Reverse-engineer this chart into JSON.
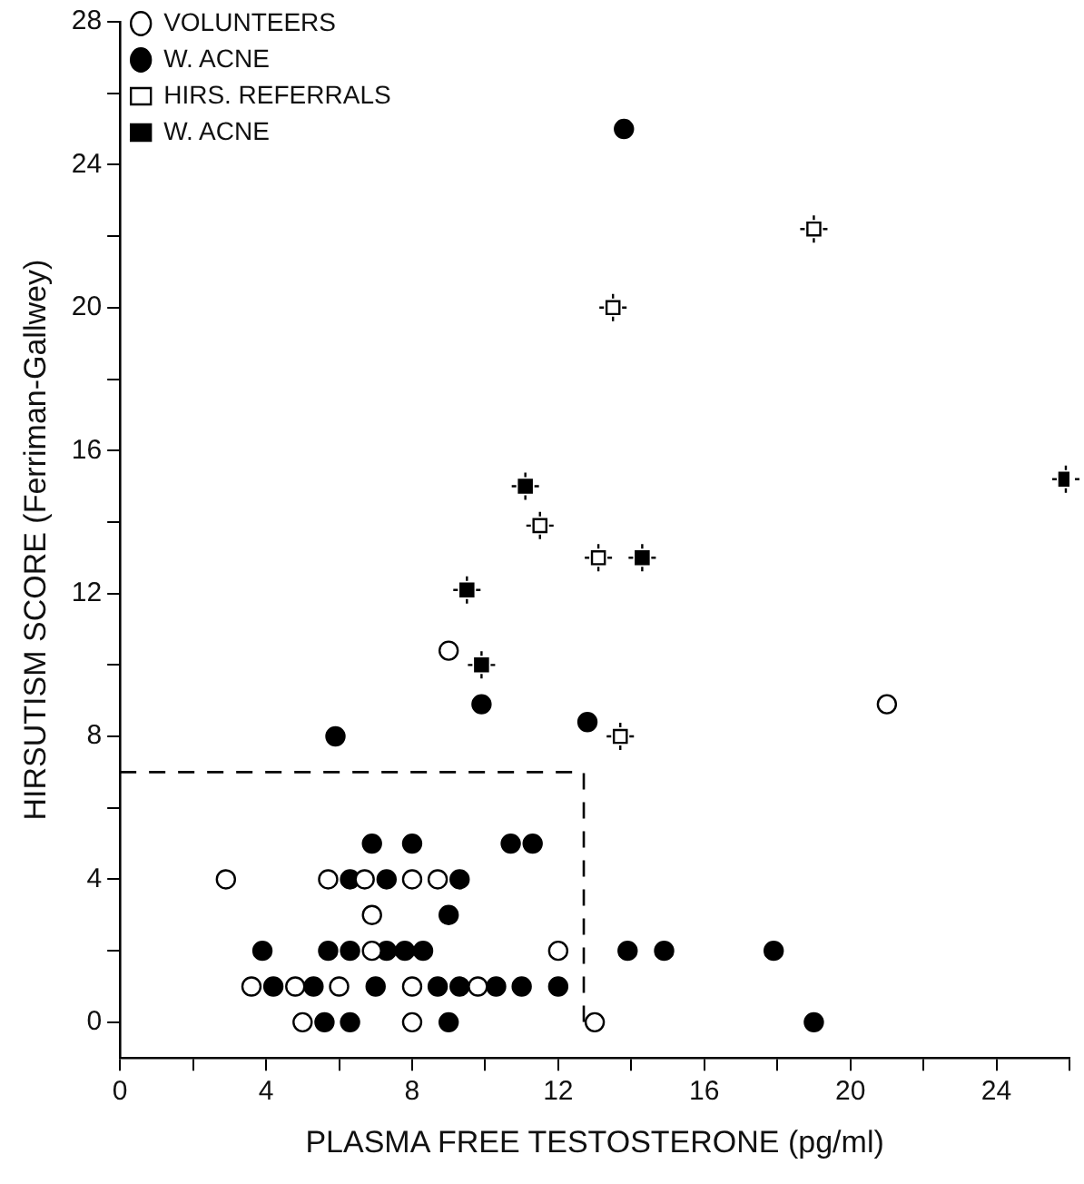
{
  "chart_data": {
    "type": "scatter",
    "xlabel": "PLASMA FREE TESTOSTERONE (pg/ml)",
    "ylabel": "HIRSUTISM SCORE (Ferriman-Gallwey)",
    "xlim": [
      0,
      26
    ],
    "ylim": [
      -1,
      28
    ],
    "xticks": [
      0,
      {
        "value": 2,
        "label": null
      },
      4,
      {
        "value": 6,
        "label": null
      },
      8,
      {
        "value": 10,
        "label": null
      },
      12,
      {
        "value": 14,
        "label": null
      },
      16,
      {
        "value": 18,
        "label": null
      },
      20,
      {
        "value": 22,
        "label": null
      },
      24,
      {
        "value": 26,
        "label": null
      }
    ],
    "yticks": [
      0,
      {
        "value": 2,
        "label": null
      },
      4,
      {
        "value": 6,
        "label": null
      },
      8,
      {
        "value": 10,
        "label": null
      },
      12,
      {
        "value": 14,
        "label": null
      },
      16,
      {
        "value": 18,
        "label": null
      },
      20,
      {
        "value": 22,
        "label": null
      },
      24,
      {
        "value": 26,
        "label": null
      },
      28
    ],
    "grid": false,
    "legend": "top left",
    "series": [
      {
        "name": "VOLUNTEERS",
        "color": "#ffffff",
        "marker": "circle",
        "x": [
          2.9,
          5.7,
          6.7,
          8.0,
          8.7,
          6.9,
          6.9,
          12.0,
          3.6,
          4.8,
          6.0,
          8.0,
          9.8,
          5.0,
          8.0,
          13.0,
          9.0,
          21.0
        ],
        "values": [
          4,
          4,
          4,
          4,
          4,
          3,
          2,
          2,
          1,
          1,
          1,
          1,
          1,
          0,
          0,
          0,
          10.4,
          8.9
        ]
      },
      {
        "name": "W. ACNE",
        "color": "#000000",
        "marker": "circle",
        "x": [
          6.9,
          8.0,
          10.7,
          11.3,
          6.3,
          7.3,
          9.3,
          9.0,
          3.9,
          5.7,
          6.3,
          7.3,
          7.8,
          8.3,
          4.2,
          5.3,
          7.0,
          8.7,
          9.3,
          10.3,
          11.0,
          12.0,
          5.6,
          6.3,
          9.0,
          12.8,
          13.9,
          14.9,
          17.9,
          19.0,
          13.8,
          9.9,
          5.9
        ],
        "values": [
          5,
          5,
          5,
          5,
          4,
          4,
          4,
          3,
          2,
          2,
          2,
          2,
          2,
          2,
          1,
          1,
          1,
          1,
          1,
          1,
          1,
          1,
          0,
          0,
          0,
          8.4,
          2,
          2,
          2,
          0,
          25,
          8.9,
          8
        ]
      },
      {
        "name": "HIRS. REFERRALS",
        "color": "#ffffff",
        "marker": "square",
        "x": [
          19.0,
          13.5,
          11.5,
          13.1,
          13.7
        ],
        "values": [
          22.2,
          20,
          13.9,
          13,
          8
        ]
      },
      {
        "name": "W. ACNE",
        "color": "#000000",
        "marker": "square",
        "x": [
          25.9,
          11.1,
          14.3,
          9.5,
          9.9
        ],
        "values": [
          15.2,
          15,
          13,
          12.1,
          10
        ]
      },
      {
        "type": "line",
        "color": "#000000",
        "line_style": "dashed",
        "marker": "none",
        "x": [
          0,
          12.7,
          12.7
        ],
        "values": [
          7,
          7,
          0
        ]
      }
    ]
  }
}
